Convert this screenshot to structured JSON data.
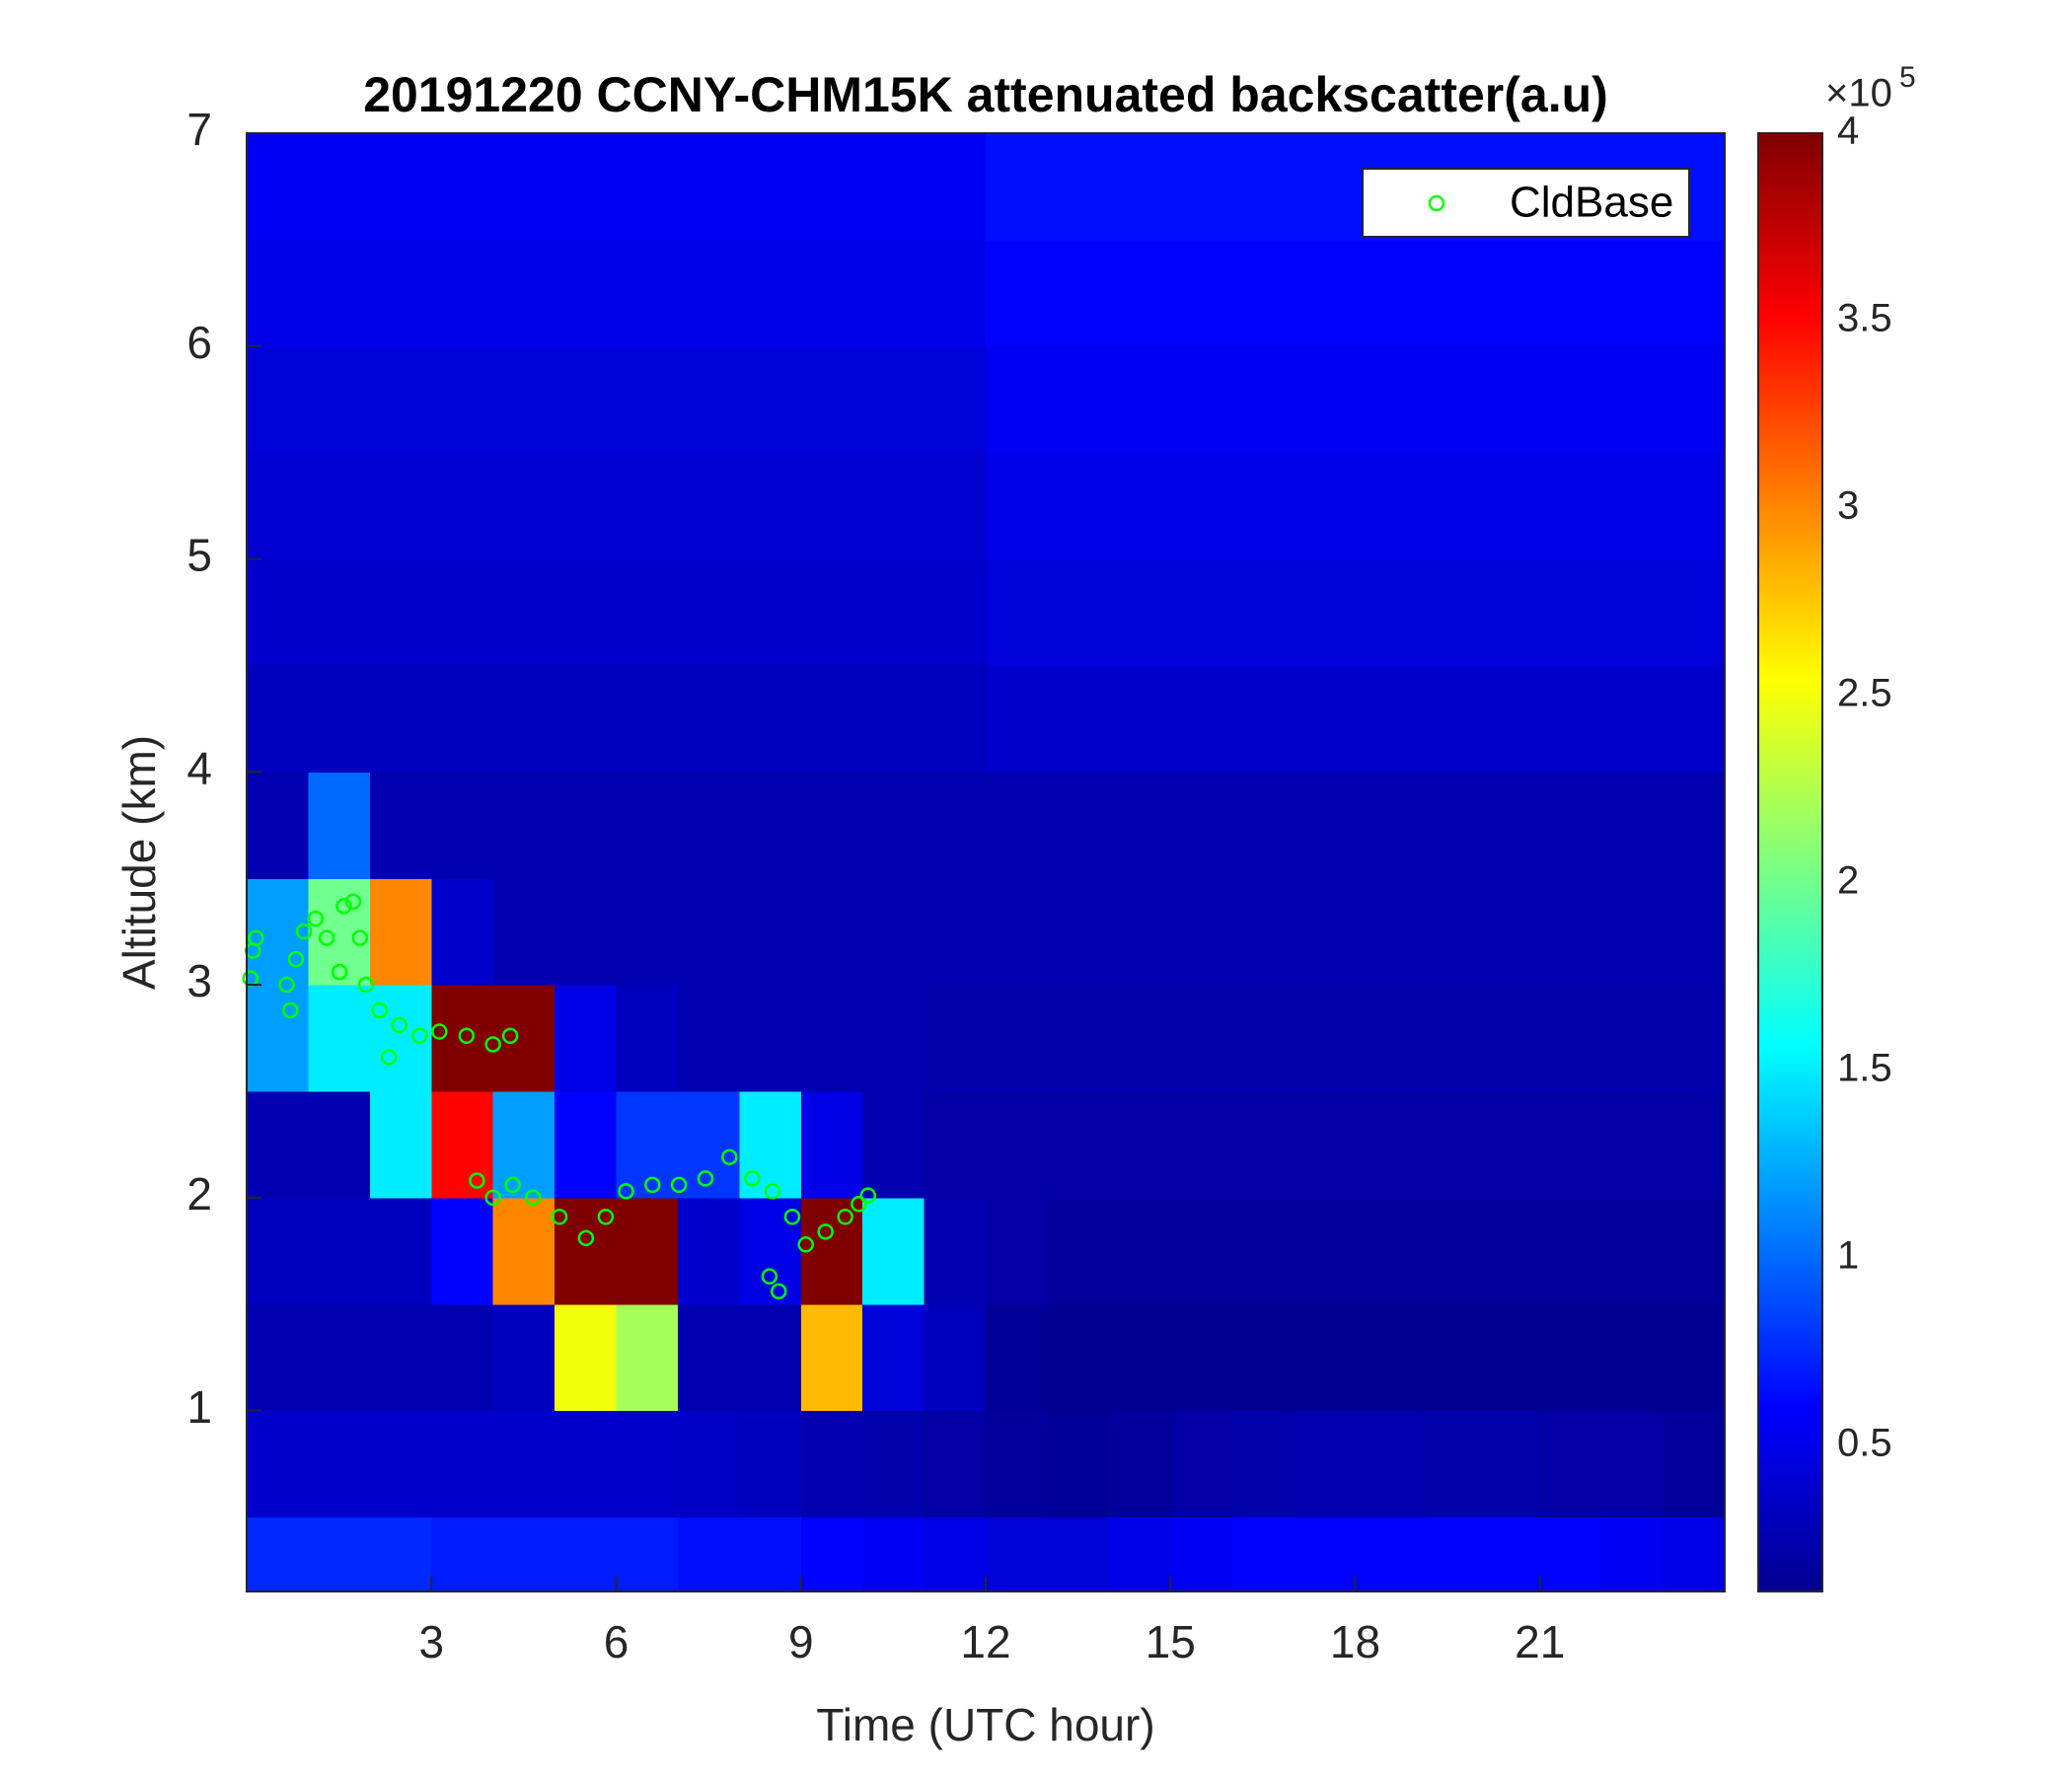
{
  "chart_data": {
    "type": "heatmap",
    "title": "20191220 CCNY-CHM15K attenuated backscatter(a.u)",
    "x_label": "Time (UTC hour)",
    "y_label": "Altitude (km)",
    "xlim": [
      0,
      24
    ],
    "xticks": [
      3,
      6,
      9,
      12,
      15,
      18,
      21
    ],
    "ylim": [
      0.15,
      7
    ],
    "yticks": [
      1,
      2,
      3,
      4,
      5,
      6,
      7
    ],
    "colormap": "jet",
    "clim": [
      0.11,
      4
    ],
    "cticks": [
      0.5,
      1,
      1.5,
      2,
      2.5,
      3,
      3.5,
      4
    ],
    "colorbar_multiplier": "×10",
    "colorbar_exponent": "5",
    "legend_position": "upper right",
    "heatmap": {
      "x_edges": [
        0,
        1,
        2,
        3,
        4,
        5,
        6,
        7,
        8,
        9,
        10,
        11,
        12,
        13,
        14,
        15,
        16,
        17,
        18,
        19,
        20,
        21,
        22,
        23,
        24
      ],
      "y_edges": [
        0.15,
        0.5,
        1,
        1.5,
        2,
        2.5,
        3,
        3.5,
        4,
        4.5,
        5,
        5.5,
        6,
        6.5,
        7
      ],
      "values": [
        [
          0.75,
          0.75,
          0.75,
          0.7,
          0.7,
          0.7,
          0.7,
          0.65,
          0.65,
          0.6,
          0.55,
          0.5,
          0.45,
          0.45,
          0.5,
          0.55,
          0.6,
          0.6,
          0.6,
          0.6,
          0.6,
          0.6,
          0.55,
          0.5
        ],
        [
          0.4,
          0.4,
          0.4,
          0.4,
          0.4,
          0.4,
          0.4,
          0.38,
          0.35,
          0.3,
          0.28,
          0.25,
          0.22,
          0.2,
          0.22,
          0.25,
          0.28,
          0.3,
          0.3,
          0.28,
          0.28,
          0.25,
          0.25,
          0.22
        ],
        [
          0.3,
          0.3,
          0.3,
          0.3,
          0.35,
          2.5,
          2.2,
          0.3,
          0.3,
          2.8,
          0.45,
          0.35,
          0.2,
          0.18,
          0.18,
          0.18,
          0.18,
          0.18,
          0.18,
          0.18,
          0.18,
          0.18,
          0.18,
          0.18
        ],
        [
          0.35,
          0.35,
          0.35,
          0.6,
          3.0,
          4,
          4,
          0.4,
          0.5,
          4,
          1.5,
          0.3,
          0.25,
          0.22,
          0.22,
          0.22,
          0.22,
          0.22,
          0.22,
          0.22,
          0.22,
          0.22,
          0.22,
          0.22
        ],
        [
          0.3,
          0.3,
          1.5,
          3.5,
          1.2,
          0.6,
          0.8,
          0.8,
          1.5,
          0.5,
          0.3,
          0.25,
          0.25,
          0.25,
          0.25,
          0.25,
          0.25,
          0.25,
          0.25,
          0.25,
          0.25,
          0.25,
          0.25,
          0.25
        ],
        [
          1.2,
          1.5,
          1.5,
          4,
          4,
          0.5,
          0.35,
          0.3,
          0.3,
          0.3,
          0.3,
          0.28,
          0.28,
          0.28,
          0.28,
          0.28,
          0.28,
          0.28,
          0.28,
          0.28,
          0.28,
          0.28,
          0.28,
          0.28
        ],
        [
          1.2,
          2,
          3,
          0.4,
          0.3,
          0.3,
          0.3,
          0.3,
          0.3,
          0.3,
          0.3,
          0.3,
          0.3,
          0.3,
          0.3,
          0.3,
          0.3,
          0.3,
          0.3,
          0.3,
          0.3,
          0.3,
          0.3,
          0.3
        ],
        [
          0.3,
          1.0,
          0.3,
          0.3,
          0.3,
          0.3,
          0.3,
          0.3,
          0.3,
          0.3,
          0.3,
          0.3,
          0.3,
          0.3,
          0.3,
          0.3,
          0.3,
          0.3,
          0.3,
          0.3,
          0.3,
          0.3,
          0.3,
          0.3
        ],
        [
          0.35,
          0.35,
          0.35,
          0.35,
          0.35,
          0.35,
          0.35,
          0.35,
          0.35,
          0.35,
          0.35,
          0.35,
          0.4,
          0.4,
          0.4,
          0.4,
          0.4,
          0.4,
          0.4,
          0.4,
          0.4,
          0.4,
          0.4,
          0.4
        ],
        [
          0.4,
          0.4,
          0.4,
          0.4,
          0.4,
          0.4,
          0.4,
          0.4,
          0.4,
          0.4,
          0.4,
          0.4,
          0.45,
          0.45,
          0.45,
          0.45,
          0.45,
          0.45,
          0.45,
          0.45,
          0.45,
          0.45,
          0.45,
          0.45
        ],
        [
          0.42,
          0.42,
          0.42,
          0.42,
          0.42,
          0.42,
          0.42,
          0.42,
          0.42,
          0.42,
          0.42,
          0.42,
          0.5,
          0.5,
          0.5,
          0.5,
          0.5,
          0.5,
          0.5,
          0.5,
          0.5,
          0.5,
          0.5,
          0.5
        ],
        [
          0.45,
          0.45,
          0.45,
          0.45,
          0.45,
          0.45,
          0.45,
          0.45,
          0.45,
          0.45,
          0.45,
          0.45,
          0.55,
          0.55,
          0.55,
          0.55,
          0.55,
          0.55,
          0.55,
          0.55,
          0.55,
          0.55,
          0.55,
          0.55
        ],
        [
          0.5,
          0.5,
          0.5,
          0.5,
          0.5,
          0.5,
          0.5,
          0.5,
          0.5,
          0.5,
          0.5,
          0.5,
          0.6,
          0.6,
          0.6,
          0.6,
          0.6,
          0.6,
          0.6,
          0.6,
          0.6,
          0.6,
          0.6,
          0.6
        ],
        [
          0.55,
          0.55,
          0.55,
          0.55,
          0.55,
          0.55,
          0.55,
          0.55,
          0.55,
          0.55,
          0.55,
          0.55,
          0.65,
          0.65,
          0.65,
          0.65,
          0.65,
          0.65,
          0.65,
          0.65,
          0.65,
          0.65,
          0.65,
          0.65
        ]
      ]
    },
    "series": [
      {
        "name": "CldBase",
        "type": "scatter",
        "color": "#00ff00",
        "x": [
          0.1,
          0.15,
          0.06,
          0.65,
          0.71,
          0.8,
          0.93,
          1.12,
          1.3,
          1.51,
          1.58,
          1.73,
          1.84,
          1.94,
          2.16,
          2.31,
          2.48,
          2.81,
          3.13,
          3.57,
          4.0,
          4.28,
          3.74,
          4.0,
          4.32,
          4.65,
          5.08,
          5.51,
          5.83,
          6.16,
          6.59,
          7.02,
          7.45,
          7.84,
          8.21,
          8.54,
          8.49,
          8.64,
          8.86,
          9.08,
          9.4,
          9.72,
          9.94,
          10.09
        ],
        "values": [
          3.16,
          3.22,
          3.03,
          3.0,
          2.88,
          3.12,
          3.25,
          3.31,
          3.22,
          3.06,
          3.37,
          3.39,
          3.22,
          3.0,
          2.88,
          2.66,
          2.81,
          2.76,
          2.78,
          2.76,
          2.72,
          2.76,
          2.08,
          2.0,
          2.06,
          2.0,
          1.91,
          1.81,
          1.91,
          2.03,
          2.06,
          2.06,
          2.09,
          2.19,
          2.09,
          2.03,
          1.63,
          1.56,
          1.91,
          1.78,
          1.84,
          1.91,
          1.97,
          2.01
        ]
      }
    ]
  }
}
